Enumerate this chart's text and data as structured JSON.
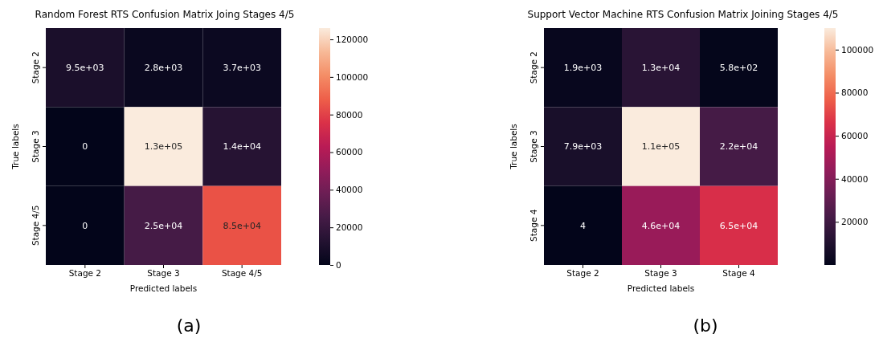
{
  "chart_data": [
    {
      "type": "heatmap",
      "title": "Random Forest RTS Confusion Matrix Joing Stages 4/5",
      "xlabel": "Predicted labels",
      "ylabel": "True labels",
      "categories": [
        "Stage 2",
        "Stage 3",
        "Stage 4/5"
      ],
      "y_categories": [
        "Stage 2",
        "Stage 3",
        "Stage 4/5"
      ],
      "cells": [
        [
          9500,
          2800,
          3700
        ],
        [
          0,
          126000,
          14000
        ],
        [
          0,
          25000,
          85000
        ]
      ],
      "cell_labels": [
        [
          "9.5e+03",
          "2.8e+03",
          "3.7e+03"
        ],
        [
          "0",
          "1.3e+05",
          "1.4e+04"
        ],
        [
          "0",
          "2.5e+04",
          "8.5e+04"
        ]
      ],
      "clim": [
        0,
        126000
      ],
      "cticks": [
        0,
        20000,
        40000,
        60000,
        80000,
        100000,
        120000
      ],
      "annotations": [
        "(a)"
      ]
    },
    {
      "type": "heatmap",
      "title": "Support Vector Machine RTS Confusion Matrix Joining Stages 4/5",
      "xlabel": "Predicted labels",
      "ylabel": "True labels",
      "categories": [
        "Stage 2",
        "Stage 3",
        "Stage 4"
      ],
      "y_categories": [
        "Stage 2",
        "Stage 3",
        "Stage 4"
      ],
      "cells": [
        [
          1900,
          13000,
          580
        ],
        [
          7900,
          110000,
          22000
        ],
        [
          4,
          46000,
          65000
        ]
      ],
      "cell_labels": [
        [
          "1.9e+03",
          "1.3e+04",
          "5.8e+02"
        ],
        [
          "7.9e+03",
          "1.1e+05",
          "2.2e+04"
        ],
        [
          "4",
          "4.6e+04",
          "6.5e+04"
        ]
      ],
      "clim": [
        4,
        110000
      ],
      "cticks": [
        20000,
        40000,
        60000,
        80000,
        100000
      ],
      "annotations": [
        "(b)"
      ]
    }
  ]
}
